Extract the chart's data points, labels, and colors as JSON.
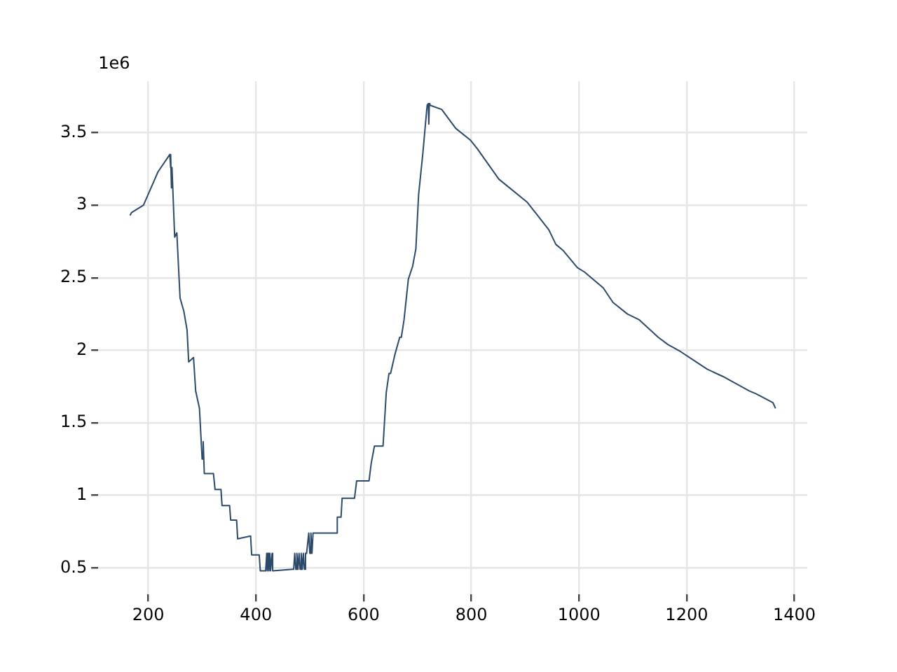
{
  "chart_data": {
    "type": "line",
    "annotations": [
      "1e6"
    ],
    "x": [
      166,
      169,
      191,
      218,
      240,
      241,
      242,
      243,
      244,
      249,
      253,
      259,
      266,
      272,
      275,
      284,
      288,
      295,
      300,
      302,
      304,
      311,
      321,
      324,
      335,
      337,
      351,
      353,
      364,
      366,
      390,
      392,
      406,
      408,
      418,
      420,
      421,
      423,
      424,
      426,
      427,
      430,
      431,
      468,
      470,
      472,
      474,
      476,
      478,
      480,
      482,
      484,
      486,
      488,
      490,
      492,
      494,
      498,
      500,
      502,
      504,
      506,
      508,
      550,
      551,
      558,
      560,
      575,
      583,
      587,
      610,
      614,
      620,
      636,
      642,
      647,
      650,
      658,
      667,
      670,
      675,
      683,
      691,
      697,
      702,
      710,
      715,
      718,
      720,
      721,
      722,
      723,
      745,
      771,
      798,
      811,
      851,
      904,
      944,
      957,
      970,
      997,
      1010,
      1045,
      1063,
      1090,
      1112,
      1147,
      1165,
      1189,
      1238,
      1267,
      1316,
      1329,
      1360,
      1365
    ],
    "values": [
      2.93,
      2.95,
      3.0,
      3.23,
      3.35,
      3.26,
      3.35,
      3.12,
      3.26,
      2.78,
      2.81,
      2.36,
      2.27,
      2.14,
      1.92,
      1.95,
      1.72,
      1.6,
      1.25,
      1.37,
      1.15,
      1.15,
      1.15,
      1.04,
      1.04,
      0.93,
      0.93,
      0.83,
      0.83,
      0.7,
      0.72,
      0.59,
      0.59,
      0.48,
      0.48,
      0.6,
      0.48,
      0.6,
      0.48,
      0.6,
      0.48,
      0.6,
      0.48,
      0.49,
      0.49,
      0.6,
      0.49,
      0.6,
      0.49,
      0.6,
      0.49,
      0.6,
      0.49,
      0.6,
      0.49,
      0.6,
      0.6,
      0.74,
      0.6,
      0.74,
      0.6,
      0.74,
      0.74,
      0.74,
      0.85,
      0.85,
      0.98,
      0.98,
      0.98,
      1.1,
      1.1,
      1.22,
      1.34,
      1.34,
      1.71,
      1.84,
      1.84,
      1.97,
      2.09,
      2.09,
      2.21,
      2.49,
      2.58,
      2.7,
      3.07,
      3.36,
      3.57,
      3.69,
      3.7,
      3.56,
      3.7,
      3.69,
      3.66,
      3.53,
      3.45,
      3.39,
      3.18,
      3.02,
      2.83,
      2.73,
      2.69,
      2.57,
      2.54,
      2.43,
      2.33,
      2.25,
      2.21,
      2.09,
      2.04,
      1.99,
      1.87,
      1.82,
      1.72,
      1.7,
      1.64,
      1.6
    ],
    "color": "#2e4a6b",
    "xlim": [
      107,
      1424
    ],
    "xticks": [
      200,
      400,
      600,
      800,
      1000,
      1200,
      1400
    ],
    "ylim": [
      0.317,
      3.855
    ],
    "yticks": [
      0.5,
      1.0,
      1.5,
      2.0,
      2.5,
      3.0,
      3.5
    ],
    "grid": true,
    "legend": false,
    "marker": "none",
    "line_style": "solid"
  }
}
